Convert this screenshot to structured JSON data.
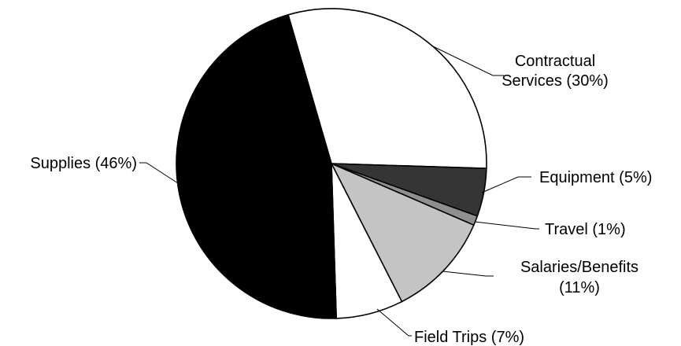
{
  "chart_data": {
    "type": "pie",
    "title": "",
    "slices": [
      {
        "label": "Contractual Services",
        "value": 30,
        "display": "(30%)",
        "color": "#ffffff"
      },
      {
        "label": "Equipment",
        "value": 5,
        "display": "(5%)",
        "color": "#353535"
      },
      {
        "label": "Travel",
        "value": 1,
        "display": "(1%)",
        "color": "#8f8f8f"
      },
      {
        "label": "Salaries/Benefits",
        "value": 11,
        "display": "(11%)",
        "color": "#c4c4c4"
      },
      {
        "label": "Field Trips",
        "value": 7,
        "display": "(7%)",
        "color": "#ffffff"
      },
      {
        "label": "Supplies",
        "value": 46,
        "display": "(46%)",
        "color": "#000000"
      }
    ]
  },
  "labels": {
    "contractual_line1": "Contractual",
    "contractual_line2": "Services (30%)",
    "equipment": "Equipment (5%)",
    "travel": "Travel (1%)",
    "salaries_line1": "Salaries/Benefits",
    "salaries_line2": "(11%)",
    "field_trips": "Field Trips (7%)",
    "supplies": "Supplies (46%)"
  }
}
